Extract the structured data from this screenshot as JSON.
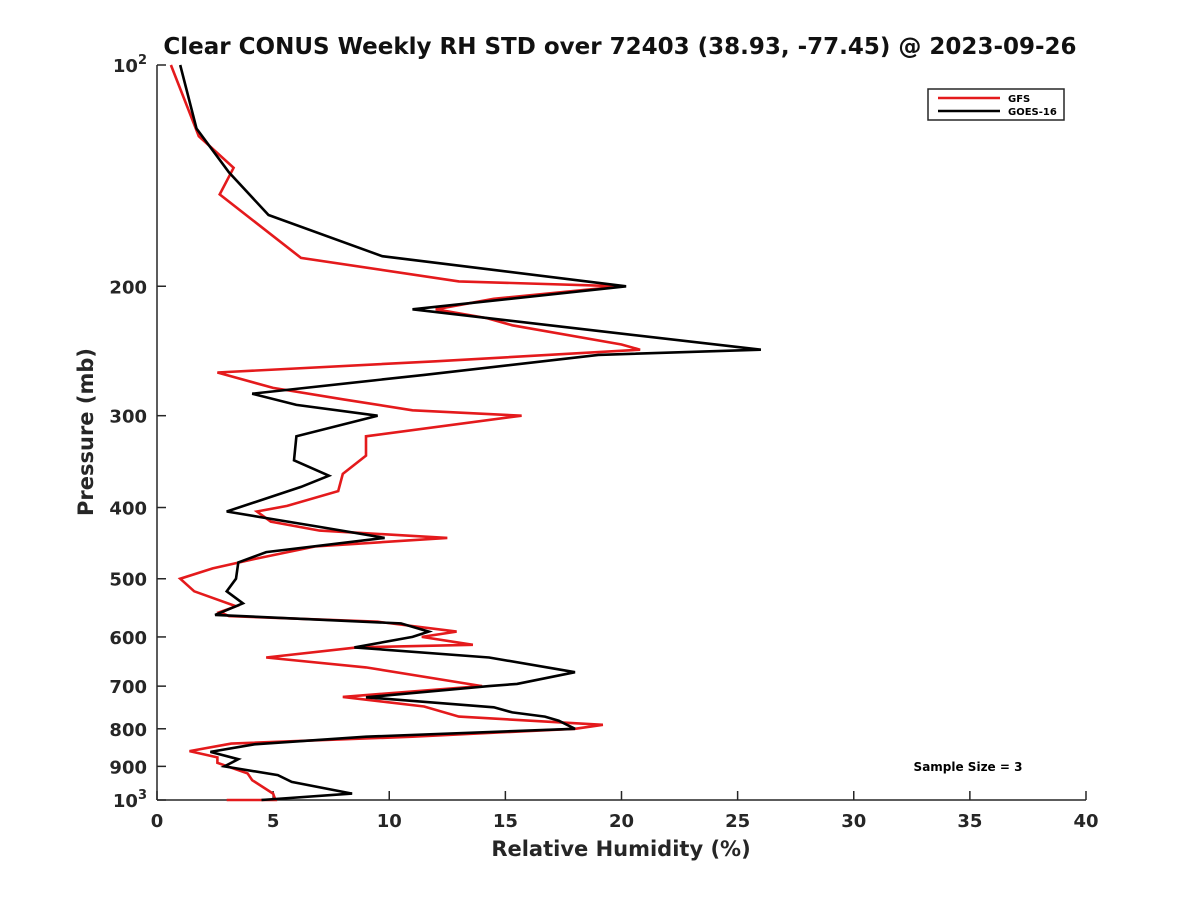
{
  "chart_data": {
    "type": "line",
    "title": "Clear CONUS Weekly RH STD over 72403 (38.93, -77.45) @ 2023-09-26",
    "xlabel": "Relative Humidity (%)",
    "ylabel": "Pressure (mb)",
    "xlim": [
      0,
      40
    ],
    "ylim": [
      100,
      1000
    ],
    "y_scale": "log",
    "y_reversed": true,
    "x_ticks": [
      "0",
      "5",
      "10",
      "15",
      "20",
      "25",
      "30",
      "35",
      "40"
    ],
    "x_tick_values": [
      0,
      5,
      10,
      15,
      20,
      25,
      30,
      35,
      40
    ],
    "y_ticks": [
      {
        "value": 100,
        "base": "10",
        "exp": "2"
      },
      {
        "value": 200,
        "label": "200"
      },
      {
        "value": 300,
        "label": "300"
      },
      {
        "value": 400,
        "label": "400"
      },
      {
        "value": 500,
        "label": "500"
      },
      {
        "value": 600,
        "label": "600"
      },
      {
        "value": 700,
        "label": "700"
      },
      {
        "value": 800,
        "label": "800"
      },
      {
        "value": 900,
        "label": "900"
      },
      {
        "value": 1000,
        "base": "10",
        "exp": "3"
      }
    ],
    "grid": false,
    "legend_position": "top-right",
    "annotation": "Sample Size = 3",
    "series": [
      {
        "name": "GFS",
        "color": "#e41a1c",
        "points": [
          [
            0.6,
            100
          ],
          [
            1.8,
            125
          ],
          [
            3.3,
            138
          ],
          [
            2.7,
            150
          ],
          [
            6.2,
            183
          ],
          [
            13.0,
            197
          ],
          [
            20.0,
            200
          ],
          [
            14.5,
            208
          ],
          [
            12.0,
            215
          ],
          [
            14.2,
            221
          ],
          [
            15.3,
            226
          ],
          [
            20.0,
            240
          ],
          [
            20.8,
            244
          ],
          [
            12.0,
            253
          ],
          [
            2.6,
            262
          ],
          [
            5.0,
            275
          ],
          [
            8.0,
            285
          ],
          [
            11.0,
            295
          ],
          [
            15.7,
            300
          ],
          [
            9.0,
            320
          ],
          [
            9.0,
            340
          ],
          [
            8.0,
            360
          ],
          [
            7.8,
            380
          ],
          [
            5.6,
            398
          ],
          [
            4.3,
            405
          ],
          [
            4.9,
            418
          ],
          [
            7.0,
            430
          ],
          [
            12.5,
            440
          ],
          [
            6.8,
            452
          ],
          [
            4.2,
            470
          ],
          [
            2.4,
            484
          ],
          [
            1.0,
            500
          ],
          [
            1.6,
            520
          ],
          [
            3.4,
            545
          ],
          [
            2.7,
            555
          ],
          [
            3.1,
            562
          ],
          [
            9.5,
            572
          ],
          [
            12.9,
            590
          ],
          [
            11.4,
            600
          ],
          [
            13.6,
            615
          ],
          [
            8.6,
            620
          ],
          [
            4.7,
            640
          ],
          [
            9.0,
            660
          ],
          [
            14.0,
            700
          ],
          [
            8.0,
            724
          ],
          [
            11.5,
            746
          ],
          [
            13.0,
            770
          ],
          [
            19.2,
            790
          ],
          [
            18.0,
            800
          ],
          [
            11.0,
            820
          ],
          [
            3.2,
            838
          ],
          [
            1.4,
            858
          ],
          [
            2.6,
            875
          ],
          [
            2.6,
            890
          ],
          [
            3.9,
            920
          ],
          [
            4.1,
            940
          ],
          [
            5.0,
            980
          ],
          [
            5.1,
            1000
          ],
          [
            3.0,
            1000
          ]
        ]
      },
      {
        "name": "GOES-16",
        "color": "#000000",
        "points": [
          [
            1.0,
            100
          ],
          [
            1.7,
            122
          ],
          [
            3.1,
            140
          ],
          [
            4.8,
            160
          ],
          [
            9.7,
            182
          ],
          [
            14.5,
            190
          ],
          [
            20.2,
            200
          ],
          [
            11.0,
            215
          ],
          [
            19.0,
            230
          ],
          [
            26.0,
            244
          ],
          [
            19.0,
            248
          ],
          [
            11.5,
            264
          ],
          [
            4.1,
            280
          ],
          [
            6.0,
            290
          ],
          [
            9.5,
            300
          ],
          [
            6.0,
            320
          ],
          [
            5.9,
            345
          ],
          [
            7.4,
            362
          ],
          [
            6.2,
            375
          ],
          [
            3.0,
            405
          ],
          [
            7.0,
            425
          ],
          [
            9.8,
            440
          ],
          [
            4.7,
            460
          ],
          [
            3.5,
            475
          ],
          [
            3.4,
            500
          ],
          [
            3.0,
            520
          ],
          [
            3.7,
            540
          ],
          [
            2.5,
            560
          ],
          [
            10.5,
            575
          ],
          [
            11.7,
            590
          ],
          [
            11.0,
            600
          ],
          [
            8.5,
            620
          ],
          [
            14.3,
            640
          ],
          [
            18.0,
            670
          ],
          [
            15.5,
            695
          ],
          [
            14.3,
            700
          ],
          [
            9.0,
            725
          ],
          [
            14.5,
            748
          ],
          [
            15.3,
            760
          ],
          [
            16.7,
            770
          ],
          [
            17.3,
            780
          ],
          [
            18.0,
            800
          ],
          [
            9.0,
            820
          ],
          [
            4.2,
            840
          ],
          [
            2.3,
            860
          ],
          [
            3.5,
            880
          ],
          [
            2.9,
            900
          ],
          [
            5.2,
            925
          ],
          [
            5.8,
            945
          ],
          [
            8.4,
            980
          ],
          [
            4.5,
            1000
          ]
        ]
      }
    ]
  }
}
